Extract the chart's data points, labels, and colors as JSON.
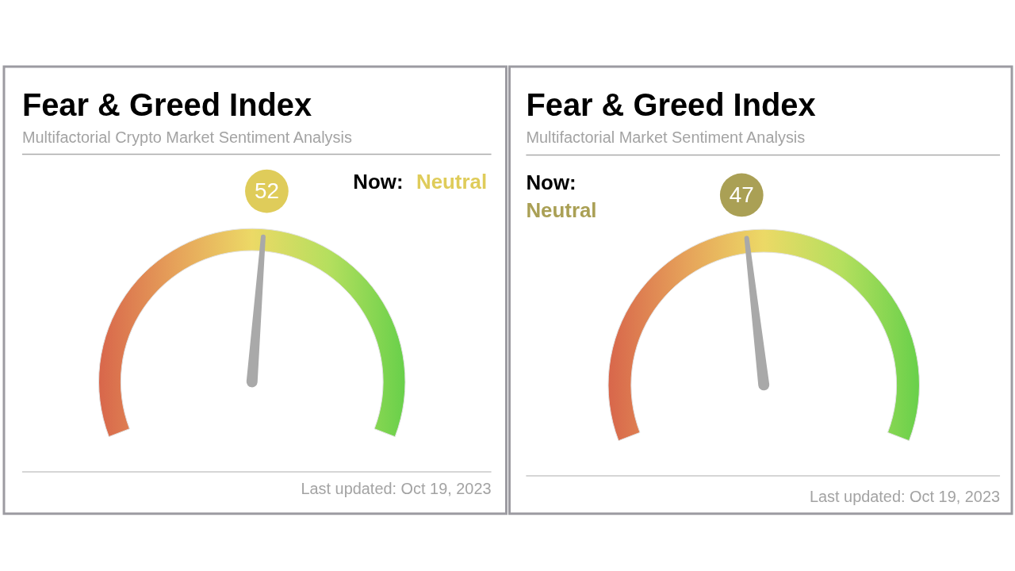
{
  "chart_data": [
    {
      "type": "other",
      "title": "Fear & Greed Index",
      "subtitle": "Multifactorial Crypto Market Sentiment Analysis",
      "values": [
        52
      ],
      "data_labels": true,
      "color": "#dfcc5a",
      "annotations": [
        "Now:",
        "Neutral",
        "Last updated: Oct 19, 2023"
      ]
    },
    {
      "type": "other",
      "title": "Fear & Greed Index",
      "subtitle": "Multifactorial Market Sentiment Analysis",
      "values": [
        47
      ],
      "data_labels": true,
      "color": "#aaa055",
      "annotations": [
        "Now:",
        "Neutral",
        "Last updated: Oct 19, 2023"
      ]
    }
  ]
}
